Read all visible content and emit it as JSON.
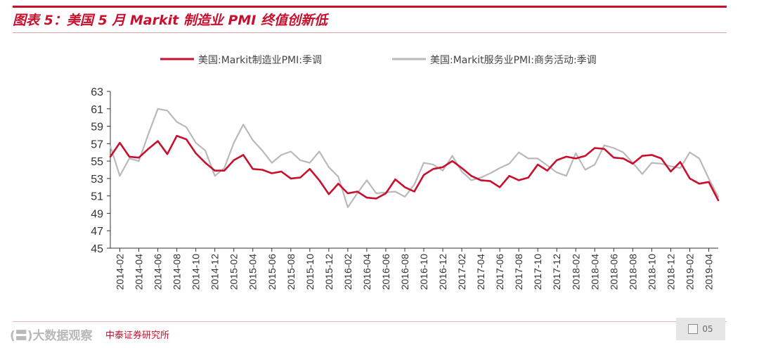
{
  "header": {
    "title": "图表 5：美国 5 月 Markit 制造业 PMI 终值创新低"
  },
  "footer": {
    "watermark": "(〓)大数据观察",
    "source": "中泰证券研究所",
    "page": "05"
  },
  "colors": {
    "manufacturing": "#c8102e",
    "services": "#b9b9b9",
    "axis": "#333333"
  },
  "chart_data": {
    "type": "line",
    "title": "图表 5：美国 5 月 Markit 制造业 PMI 终值创新低",
    "xlabel": "",
    "ylabel": "",
    "ylim": [
      45,
      63
    ],
    "yticks": [
      45,
      47,
      49,
      51,
      53,
      55,
      57,
      59,
      61,
      63
    ],
    "grid": false,
    "legend": "top",
    "x": [
      "2014-01",
      "2014-02",
      "2014-03",
      "2014-04",
      "2014-05",
      "2014-06",
      "2014-07",
      "2014-08",
      "2014-09",
      "2014-10",
      "2014-11",
      "2014-12",
      "2015-01",
      "2015-02",
      "2015-03",
      "2015-04",
      "2015-05",
      "2015-06",
      "2015-07",
      "2015-08",
      "2015-09",
      "2015-10",
      "2015-11",
      "2015-12",
      "2016-01",
      "2016-02",
      "2016-03",
      "2016-04",
      "2016-05",
      "2016-06",
      "2016-07",
      "2016-08",
      "2016-09",
      "2016-10",
      "2016-11",
      "2016-12",
      "2017-01",
      "2017-02",
      "2017-03",
      "2017-04",
      "2017-05",
      "2017-06",
      "2017-07",
      "2017-08",
      "2017-09",
      "2017-10",
      "2017-11",
      "2017-12",
      "2018-01",
      "2018-02",
      "2018-03",
      "2018-04",
      "2018-05",
      "2018-06",
      "2018-07",
      "2018-08",
      "2018-09",
      "2018-10",
      "2018-11",
      "2018-12",
      "2019-01",
      "2019-02",
      "2019-03",
      "2019-04",
      "2019-05"
    ],
    "xtick_labels": [
      "2014-02",
      "2014-04",
      "2014-06",
      "2014-08",
      "2014-10",
      "2014-12",
      "2015-02",
      "2015-04",
      "2015-06",
      "2015-08",
      "2015-10",
      "2015-12",
      "2016-02",
      "2016-04",
      "2016-06",
      "2016-08",
      "2016-10",
      "2016-12",
      "2017-02",
      "2017-04",
      "2017-06",
      "2017-08",
      "2017-10",
      "2017-12",
      "2018-02",
      "2018-04",
      "2018-06",
      "2018-08",
      "2018-10",
      "2018-12",
      "2019-02",
      "2019-04"
    ],
    "series": [
      {
        "name": "美国:Markit制造业PMI:季调",
        "color": "#c8102e",
        "values": [
          55.5,
          57.1,
          55.5,
          55.4,
          56.4,
          57.3,
          55.8,
          57.9,
          57.5,
          55.9,
          54.8,
          53.9,
          53.9,
          55.1,
          55.7,
          54.1,
          54.0,
          53.6,
          53.8,
          53.0,
          53.1,
          54.1,
          52.8,
          51.2,
          52.4,
          51.3,
          51.5,
          50.8,
          50.7,
          51.3,
          52.9,
          52.0,
          51.5,
          53.4,
          54.1,
          54.3,
          55.0,
          54.2,
          53.3,
          52.8,
          52.7,
          52.0,
          53.3,
          52.8,
          53.1,
          54.6,
          53.9,
          55.1,
          55.5,
          55.3,
          55.6,
          56.5,
          56.4,
          55.4,
          55.3,
          54.7,
          55.6,
          55.7,
          55.3,
          53.8,
          54.9,
          53.0,
          52.4,
          52.6,
          50.5
        ]
      },
      {
        "name": "美国:Markit服务业PMI:商务活动:季调",
        "color": "#b9b9b9",
        "values": [
          56.7,
          53.3,
          55.3,
          55.0,
          58.1,
          61.0,
          60.8,
          59.5,
          58.9,
          57.1,
          56.2,
          53.3,
          54.2,
          57.1,
          59.2,
          57.4,
          56.2,
          54.8,
          55.7,
          56.1,
          55.1,
          54.8,
          56.1,
          54.3,
          53.2,
          49.7,
          51.3,
          52.8,
          51.3,
          51.4,
          51.5,
          50.9,
          52.3,
          54.8,
          54.6,
          53.9,
          55.6,
          53.8,
          52.8,
          53.1,
          53.6,
          54.2,
          54.7,
          56.0,
          55.3,
          55.3,
          54.5,
          53.7,
          53.3,
          55.9,
          54.0,
          54.6,
          56.8,
          56.5,
          56.0,
          54.8,
          53.5,
          54.8,
          54.7,
          54.4,
          54.2,
          56.0,
          55.3,
          53.0,
          50.9
        ]
      }
    ]
  }
}
